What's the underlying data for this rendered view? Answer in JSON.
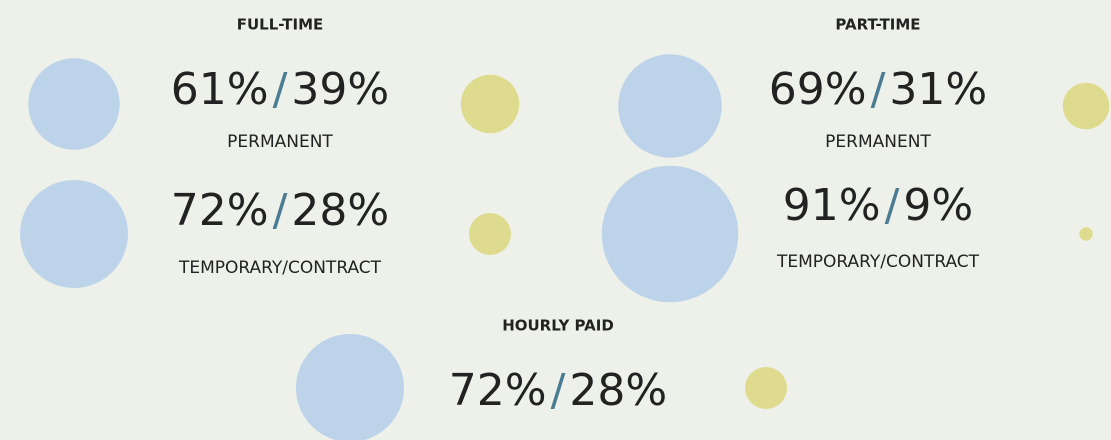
{
  "separator": "/",
  "groups": [
    {
      "title": "FULL-TIME",
      "rows": [
        {
          "values": [
            61,
            39
          ],
          "value_labels": [
            "61%",
            "39%"
          ],
          "label": "PERMANENT"
        },
        {
          "values": [
            72,
            28
          ],
          "value_labels": [
            "72%",
            "28%"
          ],
          "label": "TEMPORARY/CONTRACT"
        }
      ]
    },
    {
      "title": "PART-TIME",
      "rows": [
        {
          "values": [
            69,
            31
          ],
          "value_labels": [
            "69%",
            "31%"
          ],
          "label": "PERMANENT"
        },
        {
          "values": [
            91,
            9
          ],
          "value_labels": [
            "91%",
            "9%"
          ],
          "label": "TEMPORARY/CONTRACT"
        }
      ]
    },
    {
      "title": "HOURLY PAID",
      "rows": [
        {
          "values": [
            72,
            28
          ],
          "value_labels": [
            "72%",
            "28%"
          ]
        }
      ]
    }
  ]
}
